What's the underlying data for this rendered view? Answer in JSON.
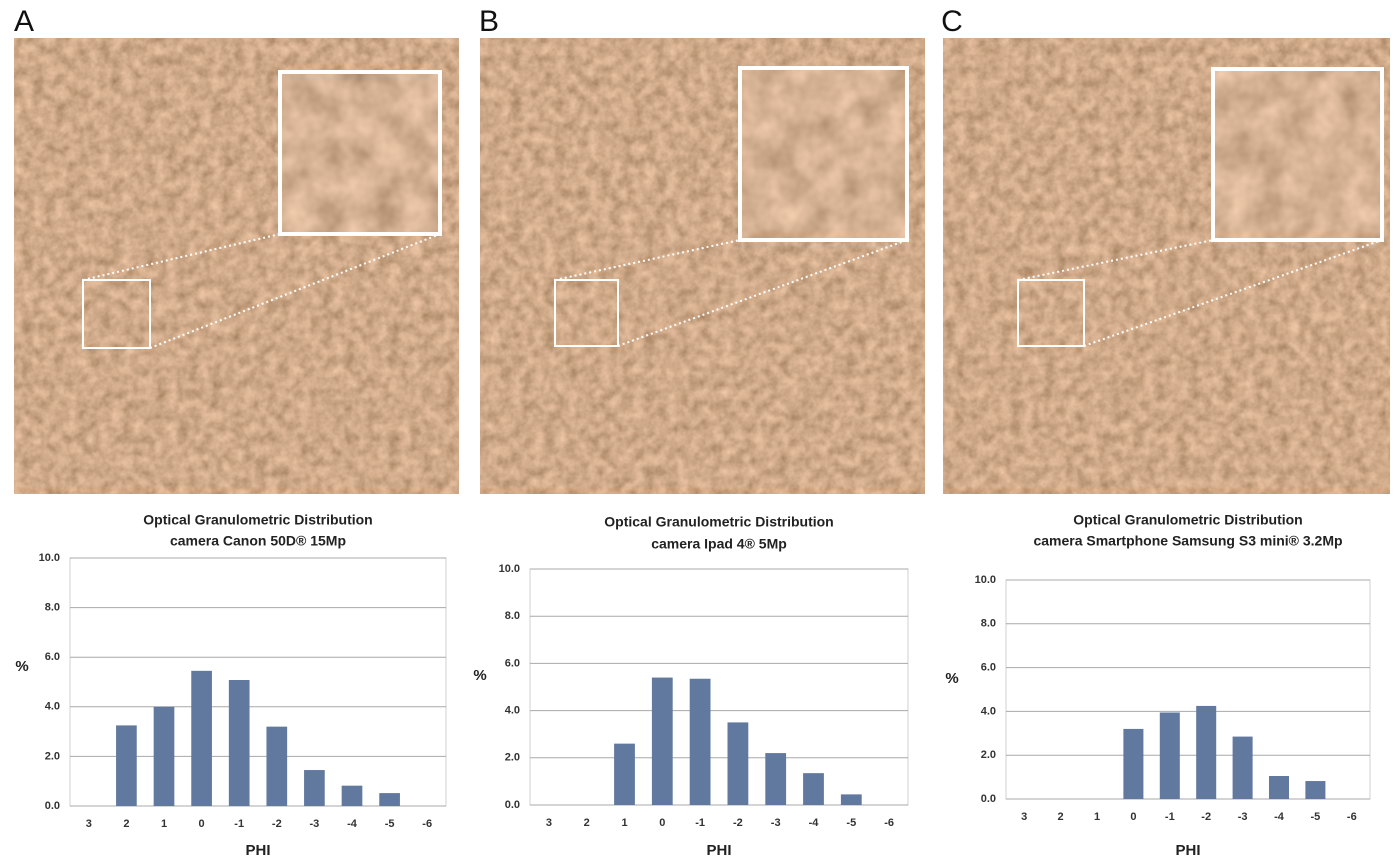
{
  "chart_data": [
    {
      "type": "bar",
      "panel_label": "A",
      "title": "Optical Granulometric Distribution",
      "subtitle": "camera Canon 50D® 15Mp",
      "x_label": "PHI",
      "y_label": "%",
      "color": "#61799f",
      "grid": true,
      "categories": [
        "3",
        "2",
        "1",
        "0",
        "-1",
        "-2",
        "-3",
        "-4",
        "-5",
        "-6"
      ],
      "values": [
        0,
        3.25,
        4.0,
        5.45,
        5.08,
        3.2,
        1.45,
        0.82,
        0.52,
        0
      ],
      "ylim": [
        0,
        10
      ],
      "yticks": [
        {
          "value": 0,
          "label": "0.0"
        },
        {
          "value": 2,
          "label": "2.0"
        },
        {
          "value": 4,
          "label": "4.0"
        },
        {
          "value": 6,
          "label": "6.0"
        },
        {
          "value": 8,
          "label": "8.0"
        },
        {
          "value": 10,
          "label": "10.0"
        }
      ]
    },
    {
      "type": "bar",
      "panel_label": "B",
      "title": "Optical Granulometric Distribution",
      "subtitle": "camera Ipad 4®  5Mp",
      "x_label": "PHI",
      "y_label": "%",
      "color": "#61799f",
      "grid": true,
      "categories": [
        "3",
        "2",
        "1",
        "0",
        "-1",
        "-2",
        "-3",
        "-4",
        "-5",
        "-6"
      ],
      "values": [
        0,
        0,
        2.6,
        5.4,
        5.35,
        3.5,
        2.2,
        1.35,
        0.45,
        0
      ],
      "ylim": [
        0,
        10
      ],
      "yticks": [
        {
          "value": 0,
          "label": "0.0"
        },
        {
          "value": 2,
          "label": "2.0"
        },
        {
          "value": 4,
          "label": "4.0"
        },
        {
          "value": 6,
          "label": "6.0"
        },
        {
          "value": 8,
          "label": "8.0"
        },
        {
          "value": 10,
          "label": "10.0"
        }
      ]
    },
    {
      "type": "bar",
      "panel_label": "C",
      "title": "Optical Granulometric Distribution",
      "subtitle": "camera Smartphone Samsung S3 mini® 3.2Mp",
      "x_label": "PHI",
      "y_label": "%",
      "color": "#61799f",
      "grid": true,
      "categories": [
        "3",
        "2",
        "1",
        "0",
        "-1",
        "-2",
        "-3",
        "-4",
        "-5",
        "-6"
      ],
      "values": [
        0,
        0,
        0,
        3.2,
        3.95,
        4.25,
        2.85,
        1.05,
        0.82,
        0
      ],
      "ylim": [
        0,
        10
      ],
      "yticks": [
        {
          "value": 0,
          "label": "0.0"
        },
        {
          "value": 2,
          "label": "2.0"
        },
        {
          "value": 4,
          "label": "4.0"
        },
        {
          "value": 6,
          "label": "6.0"
        },
        {
          "value": 8,
          "label": "8.0"
        },
        {
          "value": 10,
          "label": "10.0"
        }
      ]
    }
  ]
}
